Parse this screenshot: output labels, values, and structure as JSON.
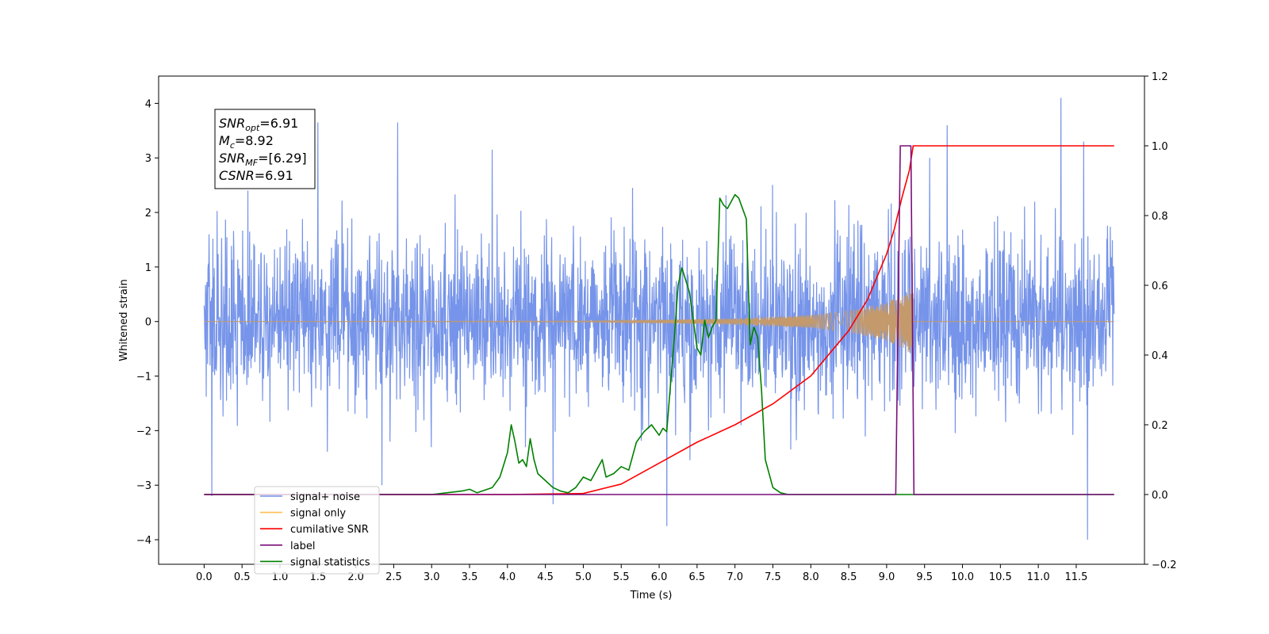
{
  "chart_data": {
    "type": "line",
    "title": "",
    "xlabel": "Time (s)",
    "ylabel": "Whitened strain",
    "xlim": [
      -0.6,
      12.4
    ],
    "ylim": [
      -4.45,
      4.5
    ],
    "y2lim": [
      -0.2,
      1.2
    ],
    "x_ticks": [
      0.0,
      0.5,
      1.0,
      1.5,
      2.0,
      2.5,
      3.0,
      3.5,
      4.0,
      4.5,
      5.0,
      5.5,
      6.0,
      6.5,
      7.0,
      7.5,
      8.0,
      8.5,
      9.0,
      9.5,
      10.0,
      10.5,
      11.0,
      11.5
    ],
    "x_tick_labels": [
      "0.0",
      "0.5",
      "1.0",
      "1.5",
      "2.0",
      "2.5",
      "3.0",
      "3.5",
      "4.0",
      "4.5",
      "5.0",
      "5.5",
      "6.0",
      "6.5",
      "7.0",
      "7.5",
      "8.0",
      "8.5",
      "9.0",
      "9.5",
      "10.0",
      "10.5",
      "11.0",
      "11.5"
    ],
    "y_ticks": [
      -4,
      -3,
      -2,
      -1,
      0,
      1,
      2,
      3,
      4
    ],
    "y_tick_labels": [
      "−4",
      "−3",
      "−2",
      "−1",
      "0",
      "1",
      "2",
      "3",
      "4"
    ],
    "y2_ticks": [
      -0.2,
      0.0,
      0.2,
      0.4,
      0.6,
      0.8,
      1.0,
      1.2
    ],
    "y2_tick_labels": [
      "−0.2",
      "0.0",
      "0.2",
      "0.4",
      "0.6",
      "0.8",
      "1.0",
      "1.2"
    ],
    "grid": false,
    "legend_position": "lower-left",
    "annotation": {
      "lines": [
        {
          "base": "SNR",
          "sub": "opt",
          "value": "=6.91"
        },
        {
          "base": "M",
          "sub": "c",
          "value": "=8.92"
        },
        {
          "base": "SNR",
          "sub": "MF",
          "value": "=[6.29]"
        },
        {
          "base": "CSNR",
          "sub": "",
          "value": "=6.91"
        }
      ]
    },
    "series": [
      {
        "name": "signal+ noise",
        "axis": "left",
        "color": "#6f8ee8",
        "kind": "noise",
        "x_range": [
          0.0,
          12.0
        ],
        "amplitude_envelope": [
          [
            0.0,
            1.75
          ],
          [
            12.0,
            1.75
          ]
        ],
        "peak_x": [
          0.1,
          1.5,
          2.55,
          3.8,
          4.6,
          6.1,
          9.8,
          11.3,
          11.6,
          11.65
        ],
        "peak_y": [
          -3.2,
          3.65,
          3.65,
          3.15,
          -3.35,
          -3.75,
          3.6,
          4.1,
          3.3,
          -4.0
        ]
      },
      {
        "name": "signal only",
        "axis": "left",
        "color": "#c49a6c",
        "kind": "chirp",
        "x_range": [
          0.0,
          12.0
        ],
        "merger_x": 9.35,
        "envelope_x": [
          0.0,
          5.0,
          6.0,
          7.0,
          8.0,
          8.5,
          9.0,
          9.25,
          9.35
        ],
        "envelope_y": [
          0.0,
          0.01,
          0.03,
          0.06,
          0.12,
          0.2,
          0.35,
          0.5,
          0.7
        ]
      },
      {
        "name": "cumilative SNR",
        "axis": "right",
        "color": "#ff0000",
        "x": [
          0.0,
          4.0,
          5.0,
          5.5,
          6.0,
          6.5,
          7.0,
          7.5,
          8.0,
          8.5,
          8.75,
          9.0,
          9.1,
          9.2,
          9.3,
          9.35,
          9.4,
          12.0
        ],
        "y": [
          0.0,
          0.0,
          0.003,
          0.03,
          0.09,
          0.15,
          0.2,
          0.26,
          0.34,
          0.47,
          0.56,
          0.69,
          0.76,
          0.85,
          0.93,
          1.0,
          1.0,
          1.0
        ]
      },
      {
        "name": "label",
        "axis": "right",
        "color": "#7b0f7b",
        "x": [
          0.0,
          9.12,
          9.18,
          9.32,
          9.36,
          12.0
        ],
        "y": [
          0.0,
          0.0,
          1.0,
          1.0,
          0.0,
          0.0
        ]
      },
      {
        "name": "signal statistics",
        "axis": "right",
        "color": "#008000",
        "x": [
          0.0,
          3.0,
          3.2,
          3.4,
          3.5,
          3.6,
          3.8,
          3.9,
          4.0,
          4.05,
          4.1,
          4.15,
          4.2,
          4.25,
          4.3,
          4.35,
          4.4,
          4.5,
          4.6,
          4.7,
          4.8,
          4.9,
          5.0,
          5.1,
          5.2,
          5.25,
          5.3,
          5.4,
          5.5,
          5.6,
          5.7,
          5.8,
          5.85,
          5.9,
          6.0,
          6.05,
          6.1,
          6.2,
          6.25,
          6.3,
          6.4,
          6.5,
          6.55,
          6.6,
          6.65,
          6.7,
          6.75,
          6.8,
          6.85,
          6.9,
          7.0,
          7.05,
          7.1,
          7.15,
          7.2,
          7.25,
          7.3,
          7.35,
          7.4,
          7.5,
          7.6,
          7.7,
          8.0,
          12.0
        ],
        "y": [
          0.0,
          0.0,
          0.005,
          0.01,
          0.015,
          0.005,
          0.02,
          0.05,
          0.12,
          0.2,
          0.15,
          0.09,
          0.1,
          0.08,
          0.16,
          0.1,
          0.06,
          0.04,
          0.02,
          0.01,
          0.005,
          0.02,
          0.05,
          0.04,
          0.08,
          0.1,
          0.05,
          0.06,
          0.08,
          0.07,
          0.15,
          0.18,
          0.19,
          0.2,
          0.17,
          0.19,
          0.18,
          0.45,
          0.6,
          0.65,
          0.58,
          0.42,
          0.4,
          0.5,
          0.45,
          0.48,
          0.5,
          0.85,
          0.83,
          0.82,
          0.86,
          0.85,
          0.82,
          0.79,
          0.43,
          0.48,
          0.45,
          0.3,
          0.1,
          0.02,
          0.005,
          0.0,
          0.0,
          0.0
        ]
      }
    ],
    "legend": [
      {
        "label": "signal+ noise",
        "color": "#6f8ee8"
      },
      {
        "label": "signal only",
        "color": "#ffbf52"
      },
      {
        "label": "cumilative SNR",
        "color": "#ff0000"
      },
      {
        "label": "label",
        "color": "#7b0f7b"
      },
      {
        "label": "signal statistics",
        "color": "#008000"
      }
    ]
  }
}
